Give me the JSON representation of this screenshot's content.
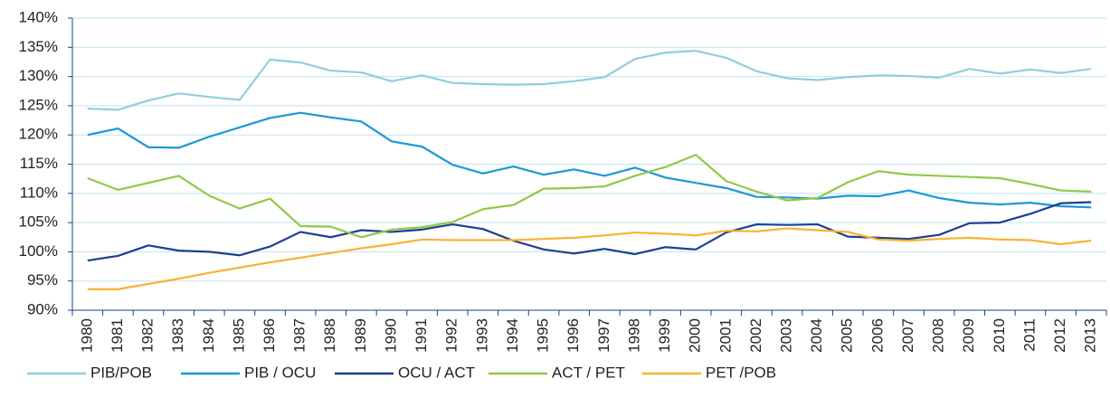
{
  "chart_data": {
    "type": "line",
    "categories": [
      "1980",
      "1981",
      "1982",
      "1983",
      "1984",
      "1985",
      "1986",
      "1987",
      "1988",
      "1989",
      "1990",
      "1991",
      "1992",
      "1993",
      "1994",
      "1995",
      "1996",
      "1997",
      "1998",
      "1999",
      "2000",
      "2001",
      "2002",
      "2003",
      "2004",
      "2005",
      "2006",
      "2007",
      "2008",
      "2009",
      "2010",
      "2011",
      "2012",
      "2013"
    ],
    "series": [
      {
        "name": "PIB/POB",
        "color": "#93cddd",
        "values": [
          124.5,
          124.3,
          125.9,
          127.1,
          126.5,
          126.0,
          132.9,
          132.4,
          131.0,
          130.7,
          129.2,
          130.2,
          128.9,
          128.7,
          128.6,
          128.7,
          129.2,
          129.9,
          133.0,
          134.1,
          134.4,
          133.2,
          130.9,
          129.7,
          129.4,
          129.9,
          130.2,
          130.1,
          129.8,
          131.3,
          130.5,
          131.2,
          130.6,
          131.3
        ]
      },
      {
        "name": "PIB / OCU",
        "color": "#1b98d5",
        "values": [
          120.0,
          121.1,
          117.9,
          117.8,
          119.7,
          121.3,
          122.9,
          123.8,
          123.0,
          122.3,
          118.9,
          118.0,
          114.9,
          113.4,
          114.6,
          113.2,
          114.1,
          113.0,
          114.4,
          112.7,
          111.8,
          110.9,
          109.4,
          109.3,
          109.1,
          109.6,
          109.5,
          110.5,
          109.2,
          108.4,
          108.1,
          108.4,
          107.8,
          107.6
        ]
      },
      {
        "name": "OCU / ACT",
        "color": "#1c3f8f",
        "values": [
          98.5,
          99.3,
          101.1,
          100.2,
          100.0,
          99.4,
          100.9,
          103.4,
          102.5,
          103.7,
          103.4,
          103.8,
          104.7,
          103.9,
          101.9,
          100.4,
          99.7,
          100.5,
          99.6,
          100.8,
          100.4,
          103.3,
          104.7,
          104.6,
          104.7,
          102.6,
          102.4,
          102.2,
          102.9,
          104.9,
          105.0,
          106.5,
          108.3,
          108.5
        ]
      },
      {
        "name": "ACT / PET",
        "color": "#92c847",
        "values": [
          112.6,
          110.6,
          111.8,
          113.0,
          109.6,
          107.4,
          109.1,
          104.4,
          104.3,
          102.5,
          103.8,
          104.2,
          105.1,
          107.3,
          108.0,
          110.8,
          110.9,
          111.2,
          113.0,
          114.5,
          116.6,
          112.1,
          110.3,
          108.8,
          109.2,
          111.9,
          113.8,
          113.2,
          113.0,
          112.8,
          112.6,
          111.6,
          110.5,
          110.3
        ]
      },
      {
        "name": "PET /POB",
        "color": "#f9b233",
        "values": [
          93.6,
          93.6,
          94.5,
          95.4,
          96.4,
          97.3,
          98.2,
          99.0,
          99.8,
          100.6,
          101.3,
          102.1,
          102.0,
          102.0,
          102.0,
          102.2,
          102.4,
          102.8,
          103.3,
          103.1,
          102.8,
          103.6,
          103.5,
          104.0,
          103.7,
          103.4,
          102.1,
          101.9,
          102.2,
          102.4,
          102.1,
          102.0,
          101.3,
          101.9
        ]
      }
    ],
    "ylim": [
      90,
      140
    ],
    "yticks": [
      {
        "value": 90,
        "label": "90%"
      },
      {
        "value": 95,
        "label": "95%"
      },
      {
        "value": 100,
        "label": "100%"
      },
      {
        "value": 105,
        "label": "105%"
      },
      {
        "value": 110,
        "label": "110%"
      },
      {
        "value": 115,
        "label": "115%"
      },
      {
        "value": 120,
        "label": "120%"
      },
      {
        "value": 125,
        "label": "125%"
      },
      {
        "value": 130,
        "label": "130%"
      },
      {
        "value": 135,
        "label": "135%"
      },
      {
        "value": 140,
        "label": "140%"
      }
    ],
    "grid": true,
    "legend": "bottom"
  }
}
